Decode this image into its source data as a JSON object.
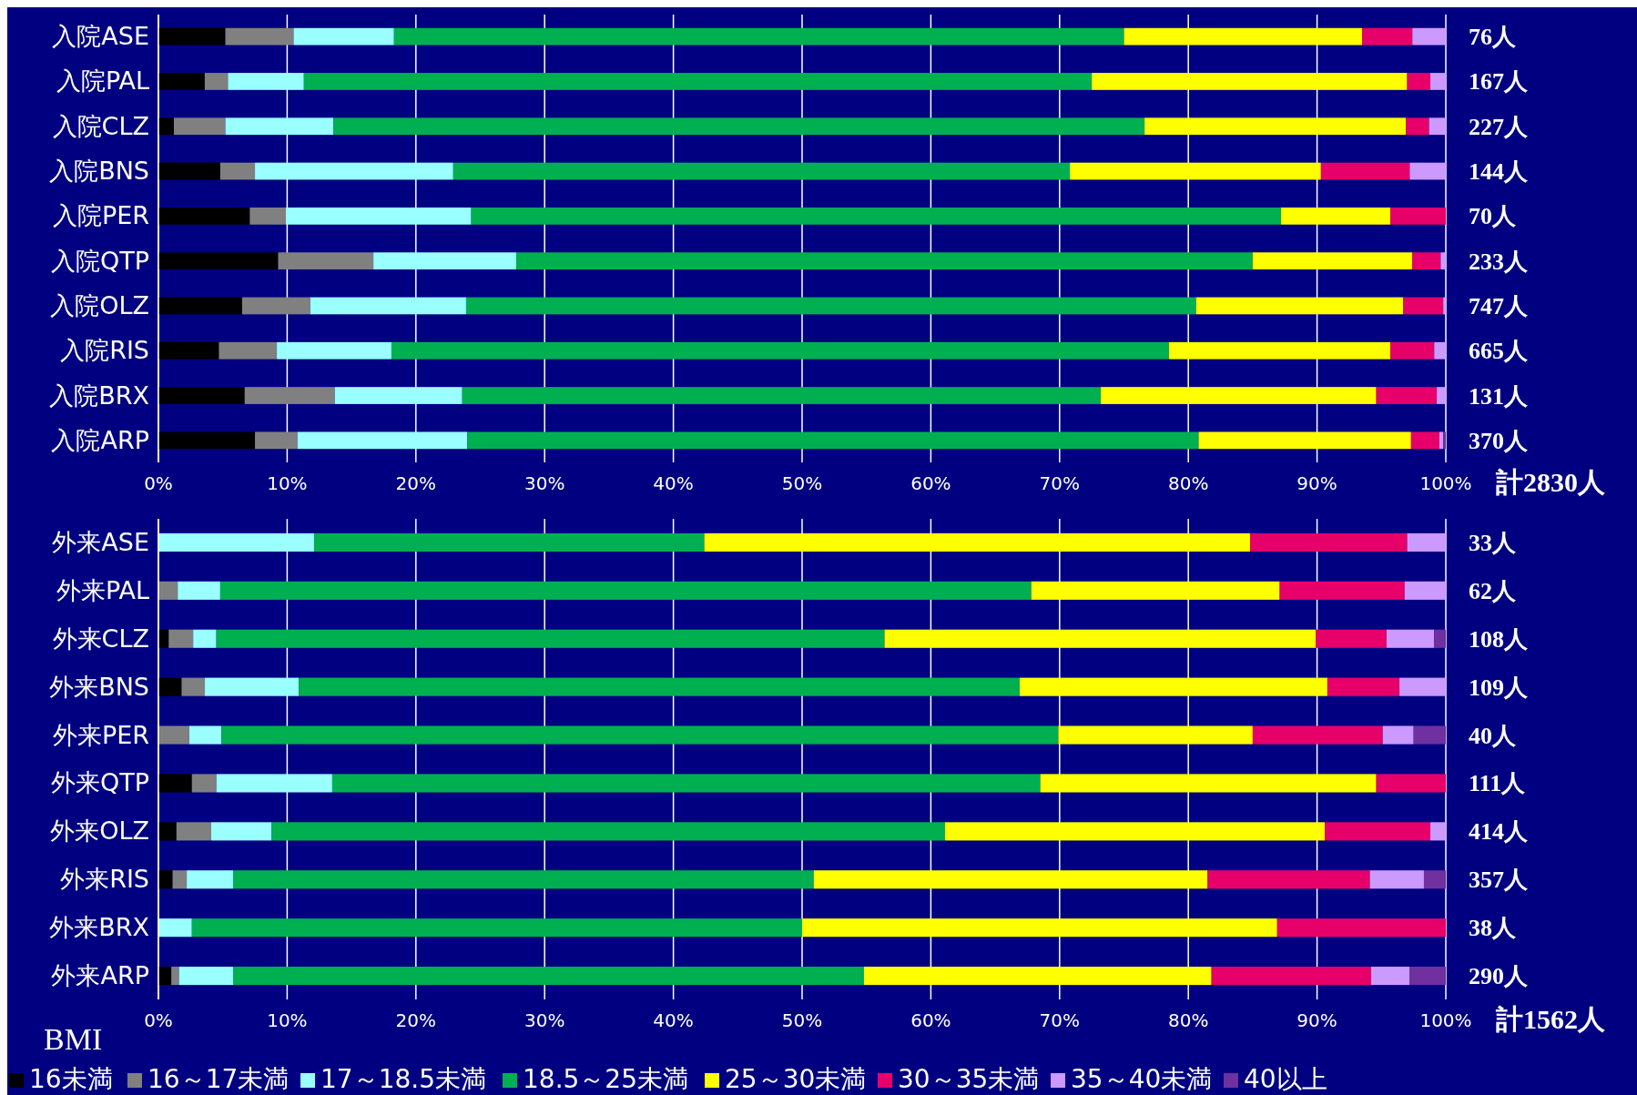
{
  "chart_data": [
    {
      "type": "bar",
      "orientation": "horizontal",
      "stacked": true,
      "grid": "x",
      "legend": false,
      "categories": [
        "入院ASE",
        "入院PAL",
        "入院CLZ",
        "入院BNS",
        "入院PER",
        "入院QTP",
        "入院OLZ",
        "入院RIS",
        "入院BRX",
        "入院ARP"
      ],
      "xlim": [
        0,
        100
      ],
      "xticks": [
        {
          "value": 0,
          "label": "0%"
        },
        {
          "value": 10,
          "label": "10%"
        },
        {
          "value": 20,
          "label": "20%"
        },
        {
          "value": 30,
          "label": "30%"
        },
        {
          "value": 40,
          "label": "40%"
        },
        {
          "value": 50,
          "label": "50%"
        },
        {
          "value": 60,
          "label": "60%"
        },
        {
          "value": 70,
          "label": "70%"
        },
        {
          "value": 80,
          "label": "80%"
        },
        {
          "value": 90,
          "label": "90%"
        },
        {
          "value": 100,
          "label": "100%"
        }
      ],
      "series": [
        {
          "color": "#000000",
          "values": [
            5.2,
            3.6,
            1.2,
            4.8,
            7.1,
            9.3,
            6.5,
            4.7,
            6.7,
            7.5
          ]
        },
        {
          "color": "#808080",
          "values": [
            5.3,
            1.8,
            4.0,
            2.7,
            2.8,
            7.4,
            5.3,
            4.5,
            7.0,
            3.3
          ]
        },
        {
          "color": "#99ffff",
          "values": [
            7.8,
            5.9,
            8.4,
            15.4,
            14.4,
            11.1,
            12.1,
            8.9,
            9.9,
            13.2
          ]
        },
        {
          "color": "#00b050",
          "values": [
            56.7,
            61.2,
            63.0,
            47.9,
            62.9,
            57.2,
            56.7,
            60.4,
            49.6,
            56.8
          ]
        },
        {
          "color": "#ffff00",
          "values": [
            18.5,
            24.5,
            20.3,
            19.5,
            8.5,
            12.4,
            16.1,
            17.2,
            21.4,
            16.5
          ]
        },
        {
          "color": "#e8006a",
          "values": [
            3.9,
            1.8,
            1.8,
            6.9,
            4.3,
            2.2,
            3.1,
            3.4,
            4.7,
            2.2
          ]
        },
        {
          "color": "#cc99ff",
          "values": [
            2.6,
            1.2,
            1.3,
            2.8,
            0,
            0.4,
            0.2,
            0.9,
            0.7,
            0.3
          ]
        },
        {
          "color": "#7030a0",
          "values": [
            0,
            0,
            0,
            0,
            0,
            0,
            0,
            0,
            0,
            0.2
          ]
        }
      ],
      "annotations": [
        "76人",
        "167人",
        "227人",
        "144人",
        "70人",
        "233人",
        "747人",
        "665人",
        "131人",
        "370人",
        "計2830人"
      ]
    },
    {
      "type": "bar",
      "orientation": "horizontal",
      "stacked": true,
      "grid": "x",
      "legend": "bottom",
      "legend_title": "BMI",
      "categories": [
        "外来ASE",
        "外来PAL",
        "外来CLZ",
        "外来BNS",
        "外来PER",
        "外来QTP",
        "外来OLZ",
        "外来RIS",
        "外来BRX",
        "外来ARP"
      ],
      "xlim": [
        0,
        100
      ],
      "xticks": [
        {
          "value": 0,
          "label": "0%"
        },
        {
          "value": 10,
          "label": "10%"
        },
        {
          "value": 20,
          "label": "20%"
        },
        {
          "value": 30,
          "label": "30%"
        },
        {
          "value": 40,
          "label": "40%"
        },
        {
          "value": 50,
          "label": "50%"
        },
        {
          "value": 60,
          "label": "60%"
        },
        {
          "value": 70,
          "label": "70%"
        },
        {
          "value": 80,
          "label": "80%"
        },
        {
          "value": 90,
          "label": "90%"
        },
        {
          "value": 100,
          "label": "100%"
        }
      ],
      "series": [
        {
          "name": "16未満",
          "color": "#000000",
          "values": [
            0,
            0,
            0.8,
            1.8,
            0,
            2.6,
            1.4,
            1.1,
            0,
            1.0
          ]
        },
        {
          "name": "16～17未満",
          "color": "#808080",
          "values": [
            0,
            1.5,
            1.9,
            1.8,
            2.4,
            1.9,
            2.7,
            1.1,
            0,
            0.6
          ]
        },
        {
          "name": "17～18.5未満",
          "color": "#99ffff",
          "values": [
            12.1,
            3.3,
            1.8,
            7.3,
            2.5,
            9.0,
            4.7,
            3.6,
            2.6,
            4.2
          ]
        },
        {
          "name": "18.5～25未満",
          "color": "#00b050",
          "values": [
            30.3,
            63.0,
            51.9,
            56.0,
            65.0,
            55.0,
            52.3,
            45.1,
            47.4,
            49.0
          ]
        },
        {
          "name": "25～30未満",
          "color": "#ffff00",
          "values": [
            42.4,
            19.3,
            33.5,
            23.9,
            15.1,
            26.1,
            29.5,
            30.6,
            36.9,
            27.0
          ]
        },
        {
          "name": "30～35未満",
          "color": "#e8006a",
          "values": [
            12.2,
            9.7,
            5.5,
            5.6,
            10.1,
            5.4,
            8.2,
            12.6,
            13.1,
            12.4
          ]
        },
        {
          "name": "35～40未満",
          "color": "#cc99ff",
          "values": [
            3.0,
            3.2,
            3.7,
            3.6,
            2.4,
            0,
            1.2,
            4.2,
            0,
            3.0
          ]
        },
        {
          "name": "40以上",
          "color": "#7030a0",
          "values": [
            0,
            0,
            0.9,
            0,
            2.5,
            0,
            0,
            1.7,
            0,
            2.8
          ]
        }
      ],
      "annotations": [
        "33人",
        "62人",
        "108人",
        "109人",
        "40人",
        "111人",
        "414人",
        "357人",
        "38人",
        "290人",
        "計1562人"
      ]
    }
  ]
}
